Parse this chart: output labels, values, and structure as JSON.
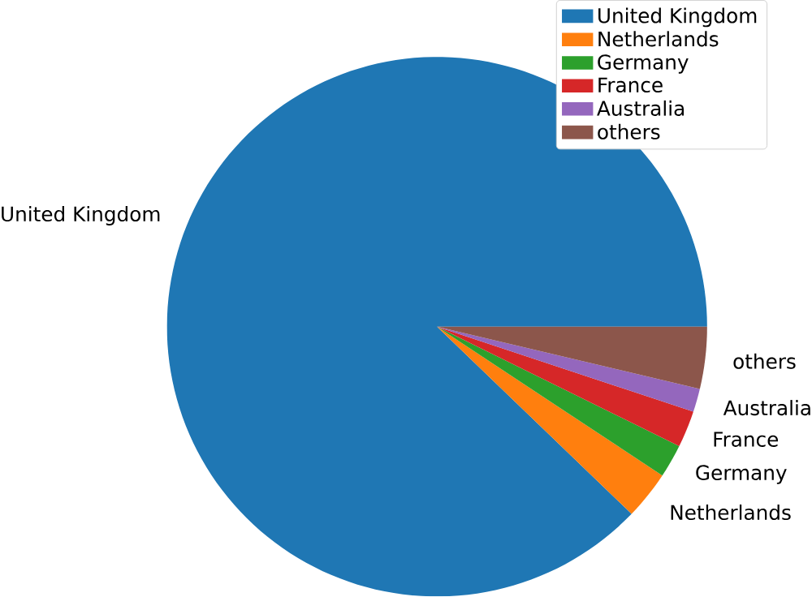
{
  "chart_data": {
    "type": "pie",
    "categories": [
      "United Kingdom",
      "Netherlands",
      "Germany",
      "France",
      "Australia",
      "others"
    ],
    "values": [
      87.8,
      2.9,
      2.0,
      2.2,
      1.4,
      3.7
    ],
    "colors": [
      "#1f77b4",
      "#ff7f0e",
      "#2ca02c",
      "#d62728",
      "#9467bd",
      "#8c564b"
    ],
    "legend": "top right"
  }
}
